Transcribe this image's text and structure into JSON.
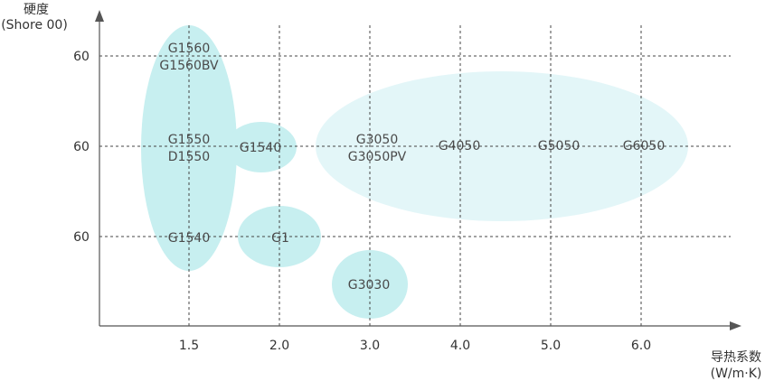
{
  "chart_data": {
    "type": "scatter",
    "title": "",
    "ylabel_line1": "硬度",
    "ylabel_line2": "(Shore 00)",
    "xlabel_line1": "导热系数",
    "xlabel_line2": "(W/m·K)",
    "x_ticks": [
      "1.5",
      "2.0",
      "3.0",
      "4.0",
      "5.0",
      "6.0"
    ],
    "y_ticks": [
      "60",
      "60",
      "60"
    ],
    "grid": "dashed",
    "colors": {
      "cluster_strong": "#c7eff0",
      "cluster_light": "#e3f6f8",
      "grid": "#444444",
      "axis": "#555555"
    },
    "clusters": [
      {
        "name": "cluster-1-5",
        "x": "1.5",
        "level": "all",
        "shade": "strong"
      },
      {
        "name": "cluster-g1540-mid",
        "x": "1.5-2.0",
        "level": "middle",
        "shade": "strong"
      },
      {
        "name": "cluster-g1",
        "x": "2.0",
        "level": "bottom",
        "shade": "strong"
      },
      {
        "name": "cluster-g3030",
        "x": "3.0",
        "level": "below-bottom",
        "shade": "strong"
      },
      {
        "name": "cluster-high",
        "x": "3.0-6.0",
        "level": "middle",
        "shade": "light"
      }
    ],
    "products": [
      {
        "label": "G1560",
        "x": "1.5",
        "level": "top"
      },
      {
        "label": "G1560BV",
        "x": "1.5",
        "level": "top"
      },
      {
        "label": "G1550",
        "x": "1.5",
        "level": "middle"
      },
      {
        "label": "D1550",
        "x": "1.5",
        "level": "middle"
      },
      {
        "label": "G1540",
        "x": "1.5",
        "level": "bottom"
      },
      {
        "label": "G1540",
        "x": "1.5-2.0",
        "level": "middle"
      },
      {
        "label": "G1",
        "x": "2.0",
        "level": "bottom"
      },
      {
        "label": "G3050",
        "x": "3.0",
        "level": "middle"
      },
      {
        "label": "G3050PV",
        "x": "3.0",
        "level": "middle"
      },
      {
        "label": "G4050",
        "x": "4.0",
        "level": "middle"
      },
      {
        "label": "G5050",
        "x": "5.0",
        "level": "middle"
      },
      {
        "label": "G6050",
        "x": "6.0",
        "level": "middle"
      },
      {
        "label": "G3030",
        "x": "3.0",
        "level": "below-bottom"
      }
    ]
  }
}
